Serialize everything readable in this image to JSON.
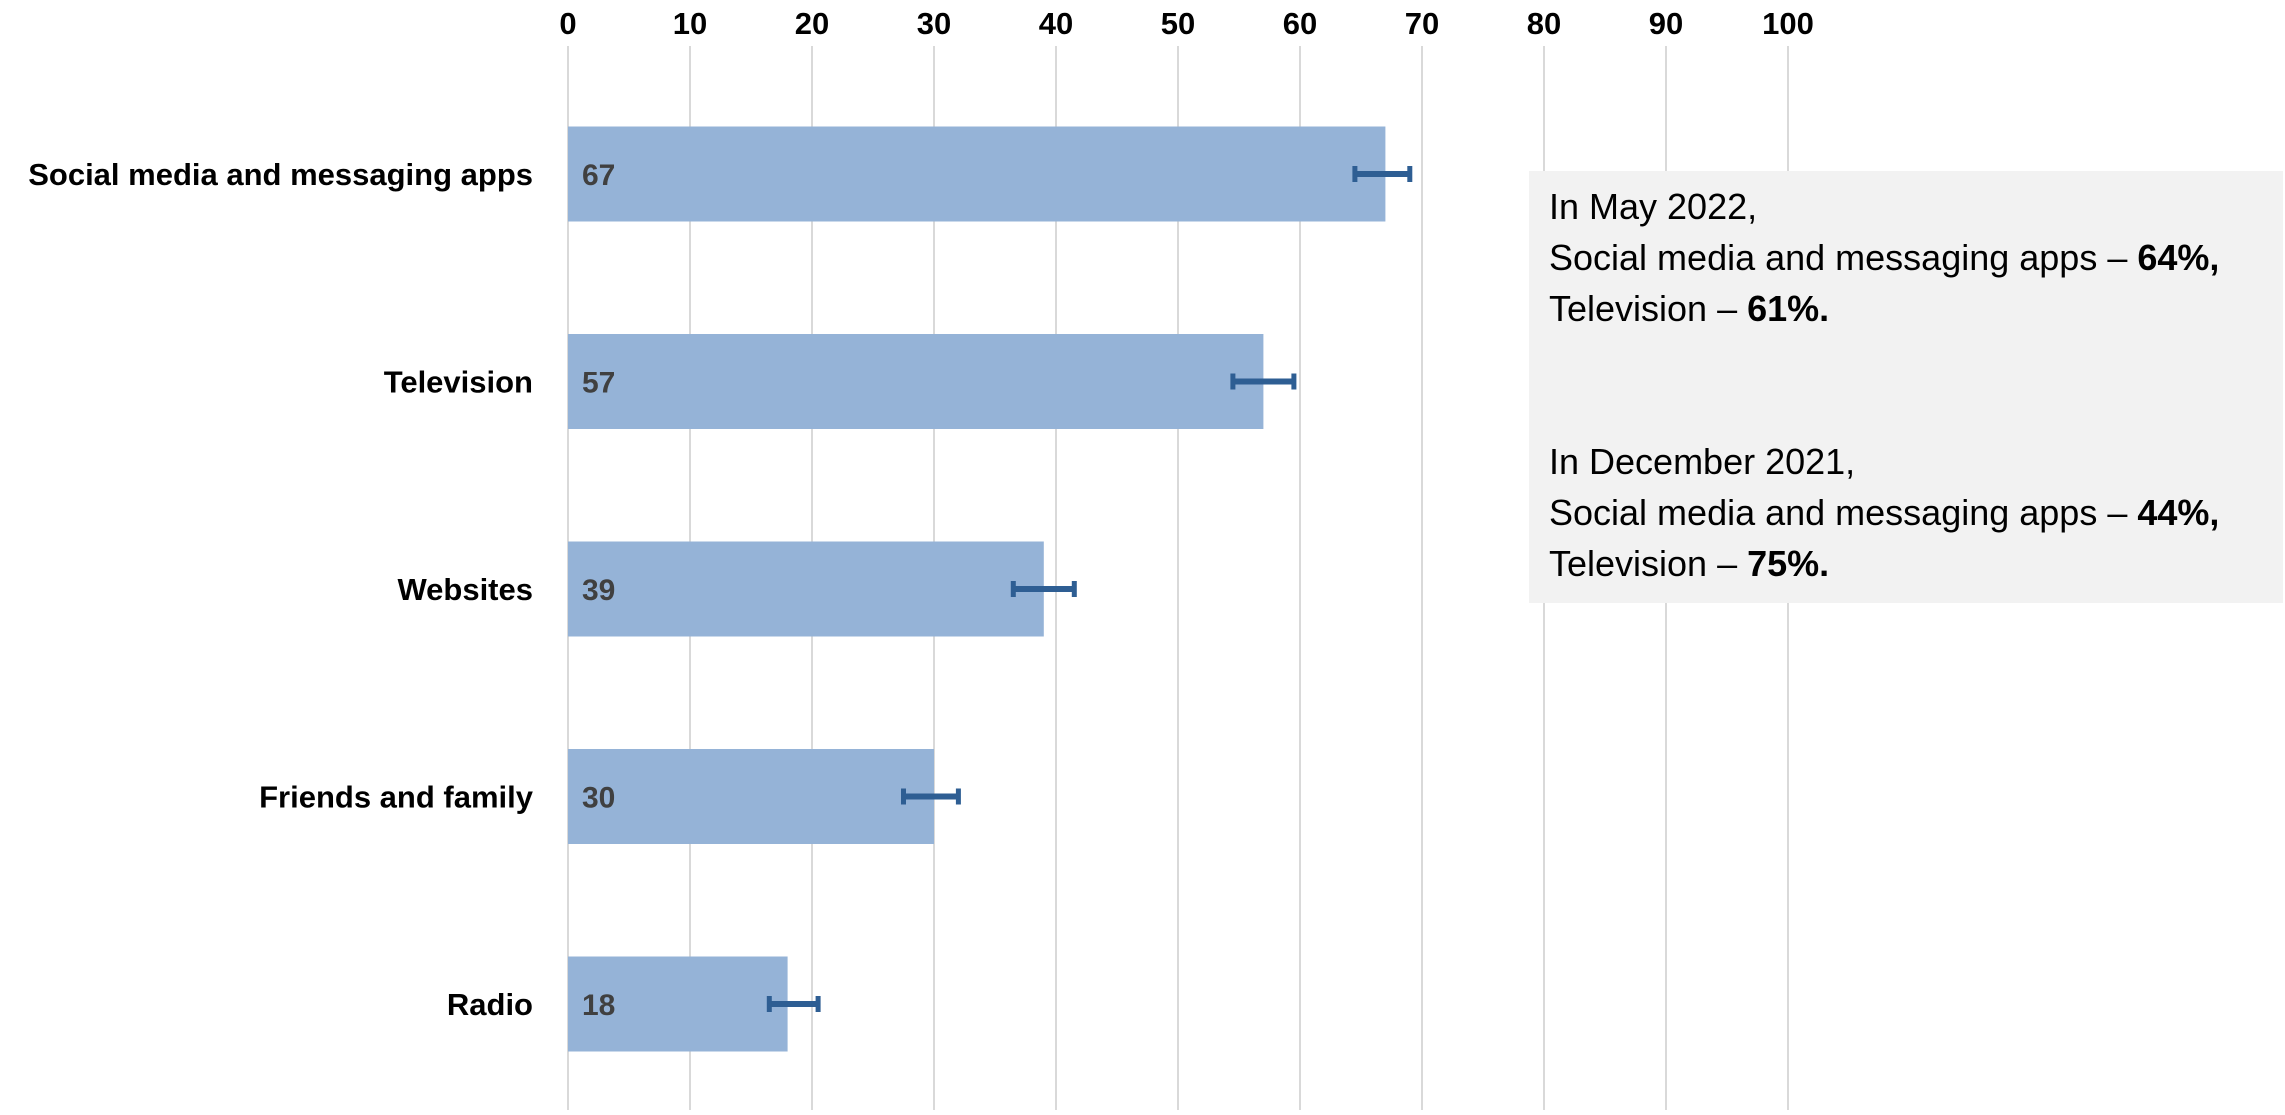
{
  "chart_data": {
    "type": "bar",
    "orientation": "horizontal",
    "title": "",
    "xlabel": "",
    "ylabel": "",
    "xlim": [
      0,
      100
    ],
    "x_ticks": [
      "0",
      "10",
      "20",
      "30",
      "40",
      "50",
      "60",
      "70",
      "80",
      "90",
      "100"
    ],
    "x_axis_position": "top",
    "grid": true,
    "legend": "none",
    "categories": [
      "Social media and messaging apps",
      "Television",
      "Websites",
      "Friends and family",
      "Radio"
    ],
    "values": [
      67,
      57,
      39,
      30,
      18
    ],
    "data_labels": [
      "67",
      "57",
      "39",
      "30",
      "18"
    ],
    "error_bars": [
      {
        "low": 64.5,
        "high": 69
      },
      {
        "low": 54.5,
        "high": 59.5
      },
      {
        "low": 36.5,
        "high": 41.5
      },
      {
        "low": 27.5,
        "high": 32
      },
      {
        "low": 16.5,
        "high": 20.5
      }
    ],
    "colors": {
      "bar": "#95b3d7",
      "error_bar": "#2e5e93",
      "grid": "#d9d9d9",
      "data_label": "#404040"
    }
  },
  "annotation": {
    "may_intro": "In May 2022,",
    "may_social_label": "Social media and messaging apps – ",
    "may_social_value": "64%,",
    "may_tv_label": "Television – ",
    "may_tv_value": "61%.",
    "dec_intro": "In December 2021,",
    "dec_social_label": "Social media and messaging apps – ",
    "dec_social_value": "44%,",
    "dec_tv_label": "Television – ",
    "dec_tv_value": "75%.",
    "background": "#f2f2f2"
  }
}
